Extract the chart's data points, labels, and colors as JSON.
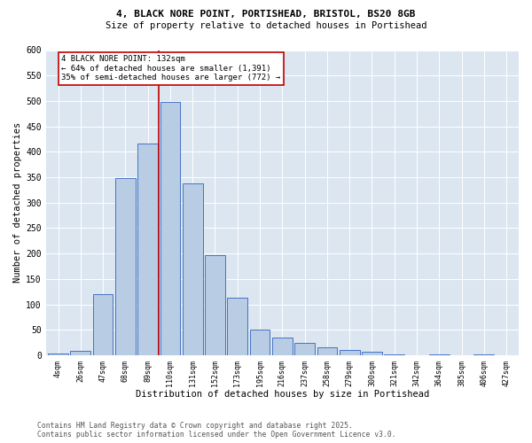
{
  "title_line1": "4, BLACK NORE POINT, PORTISHEAD, BRISTOL, BS20 8GB",
  "title_line2": "Size of property relative to detached houses in Portishead",
  "xlabel": "Distribution of detached houses by size in Portishead",
  "ylabel": "Number of detached properties",
  "categories": [
    "4sqm",
    "26sqm",
    "47sqm",
    "68sqm",
    "89sqm",
    "110sqm",
    "131sqm",
    "152sqm",
    "173sqm",
    "195sqm",
    "216sqm",
    "237sqm",
    "258sqm",
    "279sqm",
    "300sqm",
    "321sqm",
    "342sqm",
    "364sqm",
    "385sqm",
    "406sqm",
    "427sqm"
  ],
  "values": [
    4,
    8,
    120,
    348,
    416,
    498,
    338,
    196,
    113,
    50,
    35,
    24,
    16,
    10,
    7,
    2,
    0,
    1,
    0,
    1,
    0
  ],
  "bar_color": "#b8cce4",
  "bar_edge_color": "#4472c4",
  "marker_label": "4 BLACK NORE POINT: 132sqm",
  "annotation_line1": "← 64% of detached houses are smaller (1,391)",
  "annotation_line2": "35% of semi-detached houses are larger (772) →",
  "marker_line_color": "#c00000",
  "annotation_box_edgecolor": "#c00000",
  "ylim_min": 0,
  "ylim_max": 600,
  "yticks": [
    0,
    50,
    100,
    150,
    200,
    250,
    300,
    350,
    400,
    450,
    500,
    550,
    600
  ],
  "footer_line1": "Contains HM Land Registry data © Crown copyright and database right 2025.",
  "footer_line2": "Contains public sector information licensed under the Open Government Licence v3.0.",
  "plot_bg_color": "#dce6f1",
  "fig_bg_color": "#ffffff",
  "grid_color": "#ffffff",
  "title1_fontsize": 8.0,
  "title2_fontsize": 7.5,
  "axis_label_fontsize": 7.5,
  "tick_fontsize": 7.0,
  "xtick_fontsize": 6.0,
  "annotation_fontsize": 6.5,
  "footer_fontsize": 5.8
}
